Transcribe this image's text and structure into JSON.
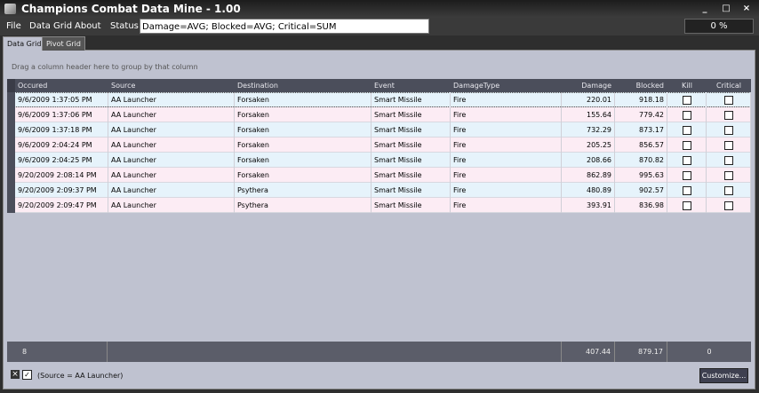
{
  "window": {
    "title": "Champions Combat Data Mine - 1.00"
  },
  "menu": [
    "File",
    "Data Grid",
    "About"
  ],
  "status": {
    "label": "Status",
    "text": "Damage=AVG; Blocked=AVG; Critical=SUM",
    "progress": "0 %"
  },
  "tabs": [
    "Data Grid",
    "Pivot Grid"
  ],
  "group_hint": "Drag a column header here to group by that column",
  "table": {
    "columns": [
      "Occured",
      "Source",
      "Destination",
      "Event",
      "DamageType",
      "Damage",
      "Blocked",
      "Kill",
      "Critical"
    ],
    "rows": [
      [
        "9/6/2009 1:37:05 PM",
        "AA Launcher",
        "Forsaken",
        "Smart Missile",
        "Fire",
        "220.01",
        "918.18",
        false,
        false
      ],
      [
        "9/6/2009 1:37:06 PM",
        "AA Launcher",
        "Forsaken",
        "Smart Missile",
        "Fire",
        "155.64",
        "779.42",
        false,
        false
      ],
      [
        "9/6/2009 1:37:18 PM",
        "AA Launcher",
        "Forsaken",
        "Smart Missile",
        "Fire",
        "732.29",
        "873.17",
        false,
        false
      ],
      [
        "9/6/2009 2:04:24 PM",
        "AA Launcher",
        "Forsaken",
        "Smart Missile",
        "Fire",
        "205.25",
        "856.57",
        false,
        false
      ],
      [
        "9/6/2009 2:04:25 PM",
        "AA Launcher",
        "Forsaken",
        "Smart Missile",
        "Fire",
        "208.66",
        "870.82",
        false,
        false
      ],
      [
        "9/20/2009 2:08:14 PM",
        "AA Launcher",
        "Forsaken",
        "Smart Missile",
        "Fire",
        "862.89",
        "995.63",
        false,
        false
      ],
      [
        "9/20/2009 2:09:37 PM",
        "AA Launcher",
        "Psythera",
        "Smart Missile",
        "Fire",
        "480.89",
        "902.57",
        false,
        false
      ],
      [
        "9/20/2009 2:09:47 PM",
        "AA Launcher",
        "Psythera",
        "Smart Missile",
        "Fire",
        "393.91",
        "836.98",
        false,
        false
      ]
    ]
  },
  "footer": {
    "count": "8",
    "damage": "407.44",
    "blocked": "879.17",
    "critical": "0"
  },
  "filter": {
    "text": "(Source = AA Launcher)",
    "button": "Customize..."
  }
}
